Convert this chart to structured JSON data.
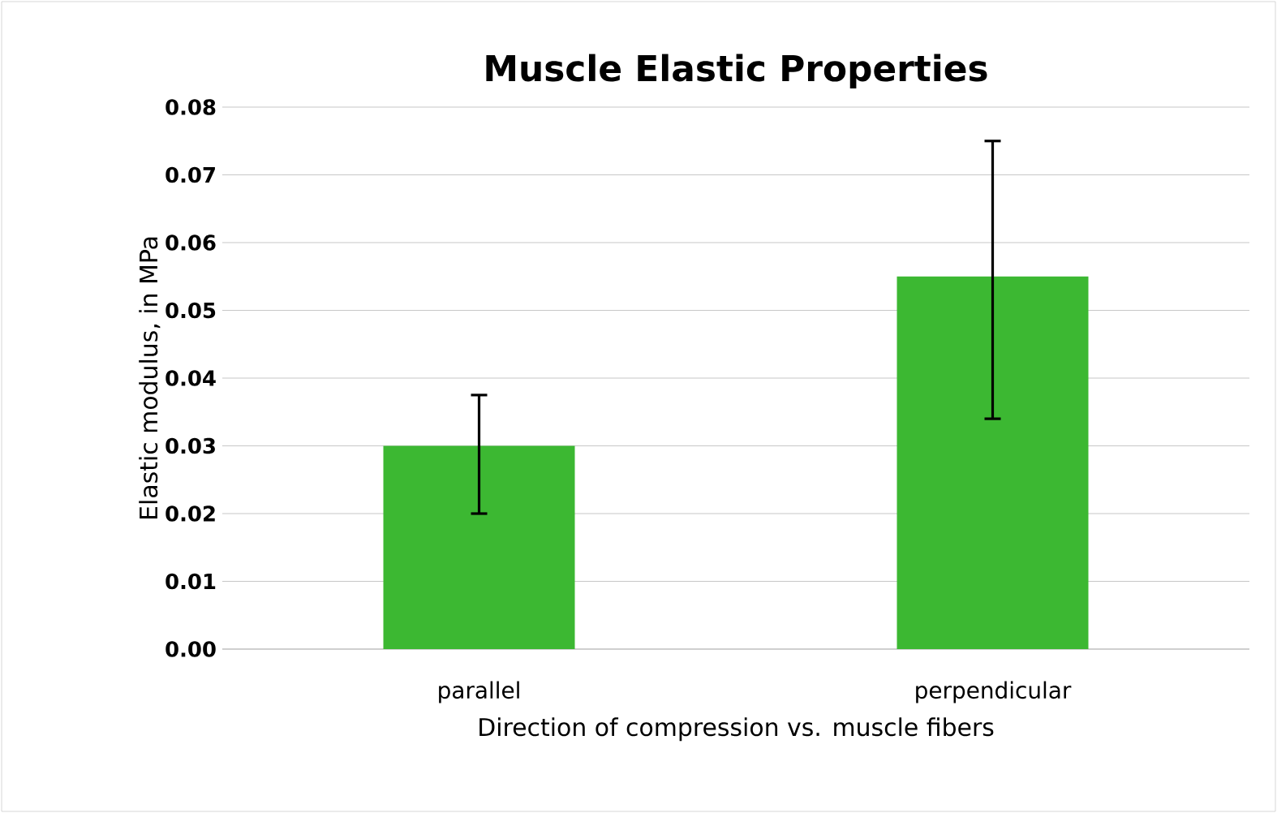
{
  "chart_data": {
    "type": "bar",
    "title": "Muscle Elastic Properties",
    "xlabel": "Direction of compression vs. muscle fibers",
    "ylabel": "Elastic modulus, in MPa",
    "categories": [
      "parallel",
      "perpendicular"
    ],
    "values": [
      0.03,
      0.055
    ],
    "color": "#3cb832",
    "errors": [
      [
        0.02,
        0.0375
      ],
      [
        0.034,
        0.075
      ]
    ],
    "ylim": [
      0,
      0.08
    ],
    "yticks": [
      {
        "value": 0,
        "label": "0.00"
      },
      {
        "value": 0.01,
        "label": "0.01"
      },
      {
        "value": 0.02,
        "label": "0.02"
      },
      {
        "value": 0.03,
        "label": "0.03"
      },
      {
        "value": 0.04,
        "label": "0.04"
      },
      {
        "value": 0.05,
        "label": "0.05"
      },
      {
        "value": 0.06,
        "label": "0.06"
      },
      {
        "value": 0.07,
        "label": "0.07"
      },
      {
        "value": 0.08,
        "label": "0.08"
      }
    ],
    "grid": "y"
  }
}
